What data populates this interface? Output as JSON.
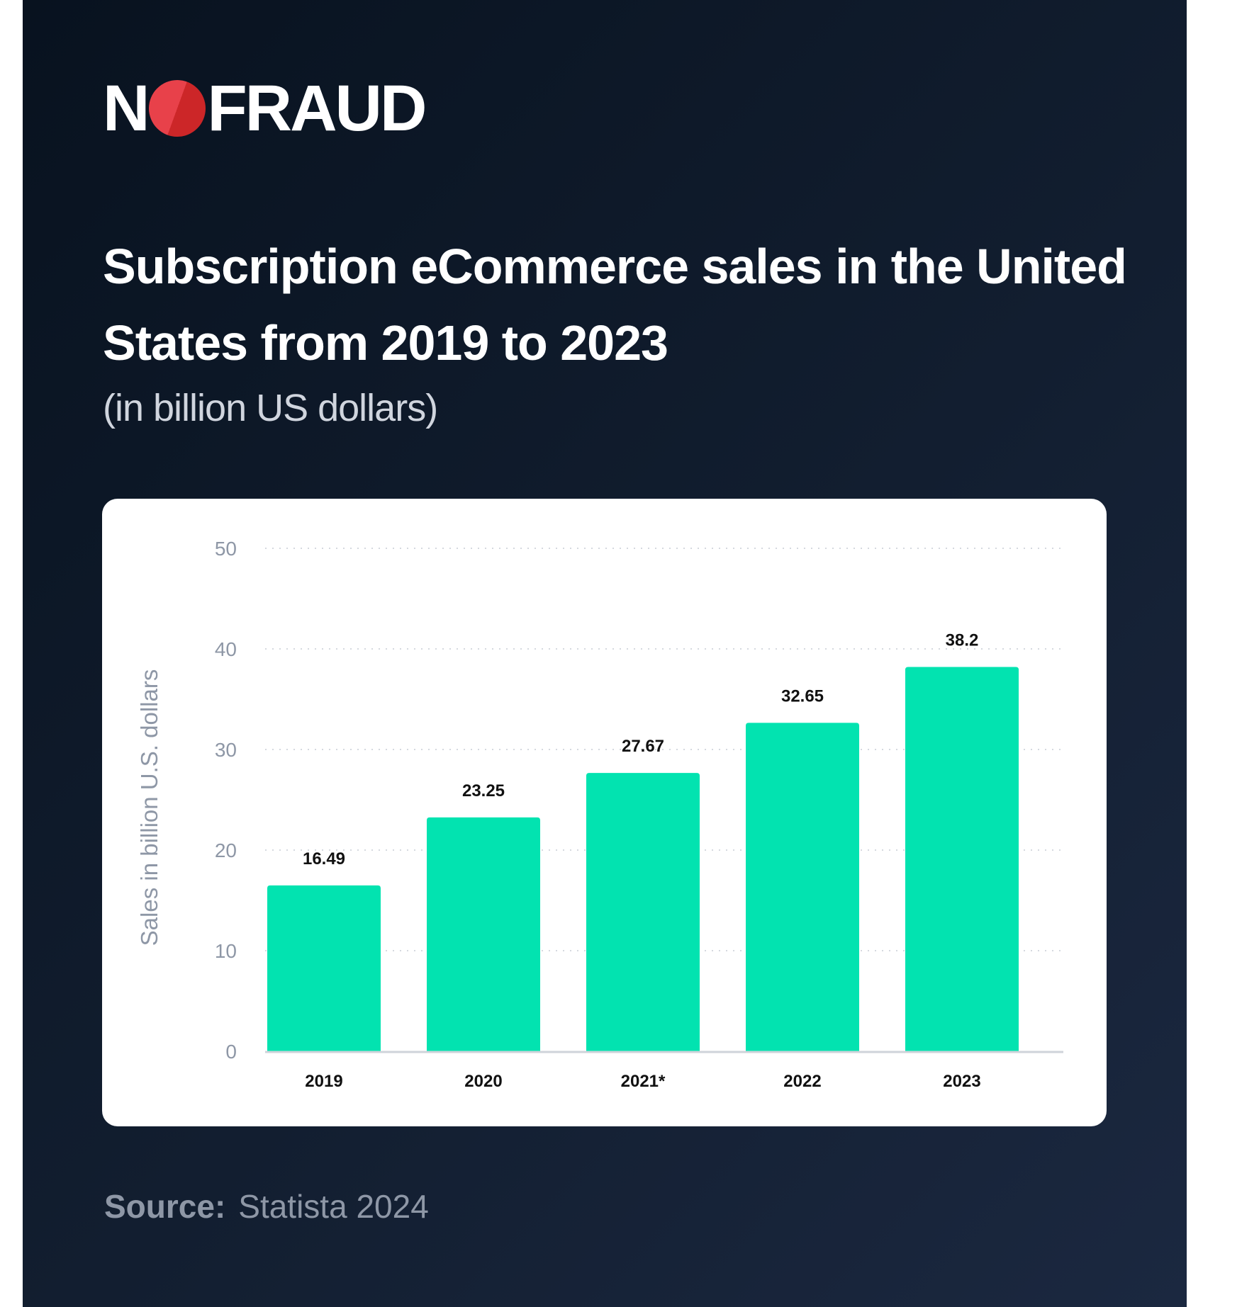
{
  "brand": {
    "logo_text": "NOFRAUD",
    "colors": {
      "logo_circle": "#e8414a",
      "background": "#0d1828"
    }
  },
  "title": "Subscription eCommerce sales in the United States from 2019 to 2023",
  "subtitle": "(in billion US dollars)",
  "source": {
    "label": "Source:",
    "value": "Statista 2024"
  },
  "chart_data": {
    "type": "bar",
    "categories": [
      "2019",
      "2020",
      "2021*",
      "2022",
      "2023"
    ],
    "values": [
      16.49,
      23.25,
      27.67,
      32.65,
      38.2
    ],
    "value_labels": [
      "16.49",
      "23.25",
      "27.67",
      "32.65",
      "38.2"
    ],
    "ylabel": "Sales in billion U.S. dollars",
    "xlabel": "",
    "ylim": [
      0,
      50
    ],
    "yticks": [
      0,
      10,
      20,
      30,
      40,
      50
    ],
    "grid": true,
    "bar_color": "#02e3b0"
  }
}
